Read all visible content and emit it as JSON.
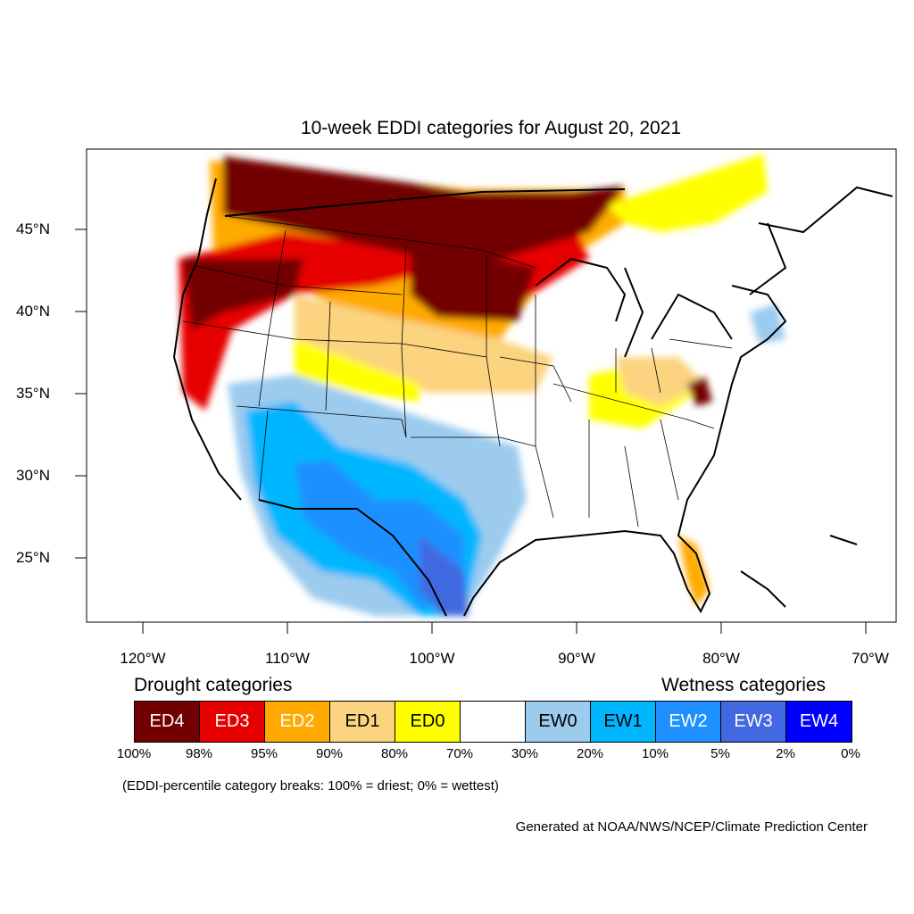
{
  "title": "10-week EDDI categories for August 20, 2021",
  "axes": {
    "lat_labels": [
      "45°N",
      "40°N",
      "35°N",
      "30°N",
      "25°N"
    ],
    "lon_labels": [
      "120°W",
      "110°W",
      "100°W",
      "90°W",
      "80°W",
      "70°W"
    ]
  },
  "legend": {
    "drought_heading": "Drought categories",
    "wetness_heading": "Wetness categories",
    "categories": [
      {
        "label": "ED4",
        "color": "#730000",
        "text_color": "#ffffff"
      },
      {
        "label": "ED3",
        "color": "#e60000",
        "text_color": "#ffffff"
      },
      {
        "label": "ED2",
        "color": "#ffaa00",
        "text_color": "#ffffff"
      },
      {
        "label": "ED1",
        "color": "#fcd37f",
        "text_color": "#000000"
      },
      {
        "label": "ED0",
        "color": "#ffff00",
        "text_color": "#000000"
      },
      {
        "label": "",
        "color": "#ffffff",
        "text_color": "#000000"
      },
      {
        "label": "EW0",
        "color": "#9ccbee",
        "text_color": "#000000"
      },
      {
        "label": "EW1",
        "color": "#00b6ff",
        "text_color": "#000000"
      },
      {
        "label": "EW2",
        "color": "#1e90ff",
        "text_color": "#ffffff"
      },
      {
        "label": "EW3",
        "color": "#4169e1",
        "text_color": "#ffffff"
      },
      {
        "label": "EW4",
        "color": "#0000ff",
        "text_color": "#ffffff"
      }
    ],
    "percentiles": [
      "100%",
      "98%",
      "95%",
      "90%",
      "80%",
      "70%",
      "30%",
      "20%",
      "10%",
      "5%",
      "2%",
      "0%"
    ]
  },
  "note": "(EDDI-percentile category breaks: 100% = driest; 0% = wettest)",
  "credit": "Generated at NOAA/NWS/NCEP/Climate Prediction Center"
}
